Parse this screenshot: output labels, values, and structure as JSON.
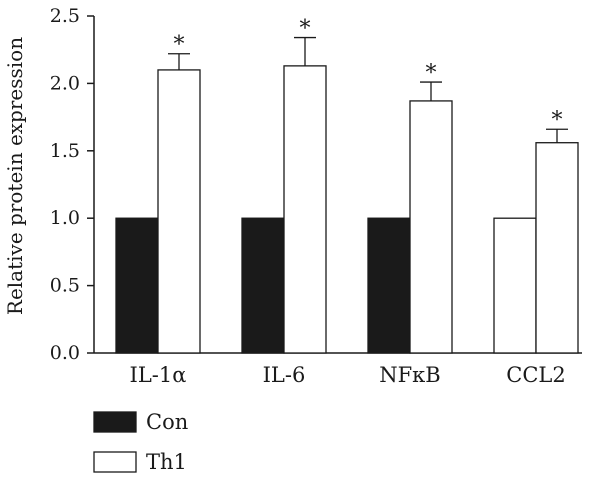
{
  "chart_data": {
    "type": "bar",
    "title": "",
    "xlabel": "",
    "ylabel": "Relative protein expression",
    "ylim": [
      0,
      2.5
    ],
    "yticks": [
      "0.0",
      "0.5",
      "1.0",
      "1.5",
      "2.0",
      "2.5"
    ],
    "grid": false,
    "legend_position": "bottom-left",
    "categories": [
      "IL-1α",
      "IL-6",
      "NFκB",
      "CCL2"
    ],
    "series": [
      {
        "name": "Con",
        "fill": "#1a1a1a",
        "values": [
          1.0,
          1.0,
          1.0,
          1.0
        ],
        "bar_fill_per_category": [
          "#1a1a1a",
          "#1a1a1a",
          "#1a1a1a",
          "#ffffff"
        ]
      },
      {
        "name": "Th1",
        "fill": "#ffffff",
        "values": [
          2.1,
          2.13,
          1.87,
          1.56
        ],
        "error_upper": [
          0.12,
          0.21,
          0.14,
          0.1
        ],
        "significance": [
          "*",
          "*",
          "*",
          "*"
        ]
      }
    ]
  }
}
